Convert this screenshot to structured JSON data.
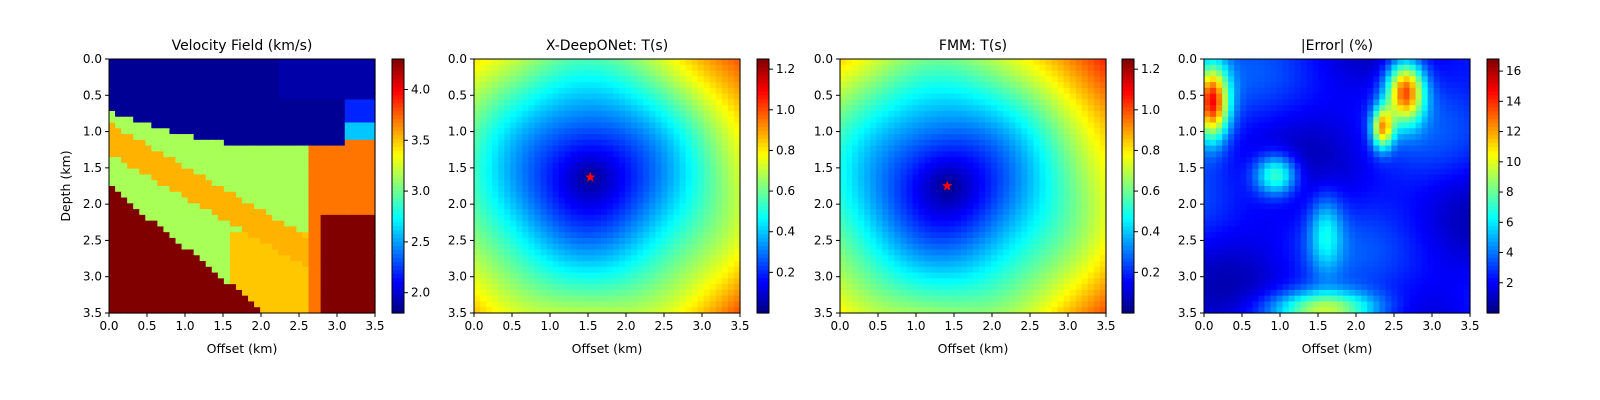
{
  "chart_data": [
    {
      "type": "heatmap",
      "title": "Velocity Field (km/s)",
      "xlabel": "Offset (km)",
      "ylabel": "Depth (km)",
      "xticks": [
        "0.0",
        "0.5",
        "1.0",
        "1.5",
        "2.0",
        "2.5",
        "3.0",
        "3.5"
      ],
      "yticks": [
        "0.0",
        "0.5",
        "1.0",
        "1.5",
        "2.0",
        "2.5",
        "3.0",
        "3.5"
      ],
      "xlim": [
        0,
        3.5
      ],
      "ylim": [
        3.5,
        0
      ],
      "colormap": "jet",
      "colorbar_ticks": [
        "2.0",
        "2.5",
        "3.0",
        "3.5",
        "4.0"
      ],
      "colorbar_range": [
        1.8,
        4.3
      ],
      "field": "layered_velocity_model",
      "source": null
    },
    {
      "type": "heatmap",
      "title": "X-DeepONet: T(s)",
      "xlabel": "Offset (km)",
      "ylabel": "",
      "xticks": [
        "0.0",
        "0.5",
        "1.0",
        "1.5",
        "2.0",
        "2.5",
        "3.0",
        "3.5"
      ],
      "yticks": [
        "0.0",
        "0.5",
        "1.0",
        "1.5",
        "2.0",
        "2.5",
        "3.0",
        "3.5"
      ],
      "xlim": [
        0,
        3.5
      ],
      "ylim": [
        3.5,
        0
      ],
      "colormap": "jet",
      "colorbar_ticks": [
        "0.2",
        "0.4",
        "0.6",
        "0.8",
        "1.0",
        "1.2"
      ],
      "colorbar_range": [
        0.0,
        1.25
      ],
      "field": "traveltime",
      "source": {
        "x": 1.53,
        "y": 1.63,
        "marker": "red star"
      }
    },
    {
      "type": "heatmap",
      "title": "FMM: T(s)",
      "xlabel": "Offset (km)",
      "ylabel": "",
      "xticks": [
        "0.0",
        "0.5",
        "1.0",
        "1.5",
        "2.0",
        "2.5",
        "3.0",
        "3.5"
      ],
      "yticks": [
        "0.0",
        "0.5",
        "1.0",
        "1.5",
        "2.0",
        "2.5",
        "3.0",
        "3.5"
      ],
      "xlim": [
        0,
        3.5
      ],
      "ylim": [
        3.5,
        0
      ],
      "colormap": "jet",
      "colorbar_ticks": [
        "0.2",
        "0.4",
        "0.6",
        "0.8",
        "1.0",
        "1.2"
      ],
      "colorbar_range": [
        0.0,
        1.25
      ],
      "field": "traveltime",
      "source": {
        "x": 1.41,
        "y": 1.75,
        "marker": "red star"
      }
    },
    {
      "type": "heatmap",
      "title": "|Error| (%)",
      "xlabel": "Offset (km)",
      "ylabel": "",
      "xticks": [
        "0.0",
        "0.5",
        "1.0",
        "1.5",
        "2.0",
        "2.5",
        "3.0",
        "3.5"
      ],
      "yticks": [
        "0.0",
        "0.5",
        "1.0",
        "1.5",
        "2.0",
        "2.5",
        "3.0",
        "3.5"
      ],
      "xlim": [
        0,
        3.5
      ],
      "ylim": [
        3.5,
        0
      ],
      "colormap": "jet",
      "colorbar_ticks": [
        "2",
        "4",
        "6",
        "8",
        "10",
        "12",
        "14",
        "16"
      ],
      "colorbar_range": [
        0.0,
        16.8
      ],
      "field": "relative_error",
      "source": null
    }
  ]
}
